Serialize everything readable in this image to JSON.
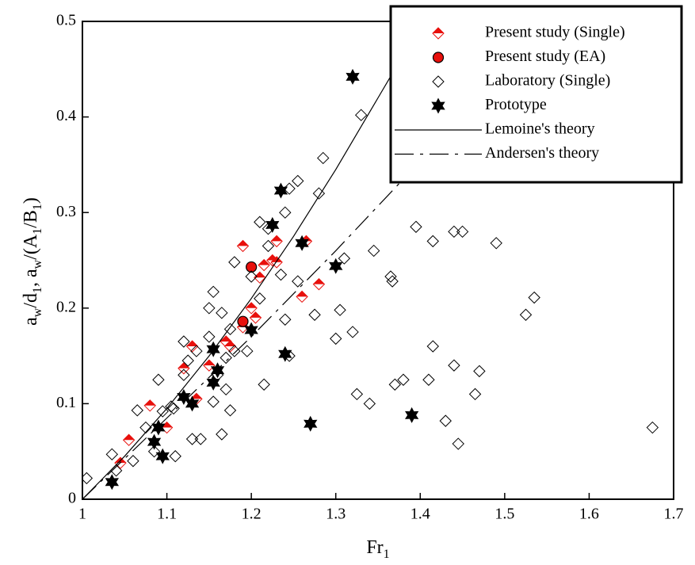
{
  "chart_data": {
    "type": "scatter",
    "xlabel_parts": [
      "Fr",
      "1"
    ],
    "ylabel_parts": [
      "a",
      "w",
      "/d",
      "1",
      ", a",
      "w",
      "/(A",
      "1",
      "/B",
      "1",
      ")"
    ],
    "xlim": [
      1,
      1.7
    ],
    "ylim": [
      0,
      0.5
    ],
    "xticks": [
      1,
      1.1,
      1.2,
      1.3,
      1.4,
      1.5,
      1.6,
      1.7
    ],
    "yticks": [
      0,
      0.1,
      0.2,
      0.3,
      0.4,
      0.5
    ],
    "legend": "top-right",
    "series": [
      {
        "name": "Present study (Single)",
        "marker": "half-diamond",
        "color": "#e8100c",
        "x": [
          1.055,
          1.045,
          1.08,
          1.1,
          1.12,
          1.13,
          1.135,
          1.15,
          1.17,
          1.175,
          1.19,
          1.19,
          1.2,
          1.205,
          1.21,
          1.215,
          1.225,
          1.23,
          1.23,
          1.26,
          1.265,
          1.28
        ],
        "values": [
          0.062,
          0.038,
          0.098,
          0.075,
          0.137,
          0.16,
          0.105,
          0.14,
          0.165,
          0.16,
          0.265,
          0.18,
          0.2,
          0.19,
          0.232,
          0.245,
          0.25,
          0.27,
          0.248,
          0.212,
          0.27,
          0.225
        ]
      },
      {
        "name": "Present study (EA)",
        "marker": "circle",
        "color": "#e8100c",
        "x": [
          1.19,
          1.2
        ],
        "values": [
          0.186,
          0.243
        ]
      },
      {
        "name": "Laboratory (Single)",
        "marker": "diamond",
        "color": "#000000",
        "x": [
          1.005,
          1.035,
          1.04,
          1.06,
          1.065,
          1.075,
          1.085,
          1.09,
          1.095,
          1.105,
          1.108,
          1.11,
          1.12,
          1.12,
          1.125,
          1.13,
          1.135,
          1.14,
          1.15,
          1.15,
          1.155,
          1.155,
          1.16,
          1.165,
          1.165,
          1.17,
          1.17,
          1.175,
          1.175,
          1.18,
          1.18,
          1.195,
          1.2,
          1.21,
          1.21,
          1.215,
          1.22,
          1.22,
          1.235,
          1.24,
          1.24,
          1.245,
          1.245,
          1.255,
          1.255,
          1.275,
          1.28,
          1.285,
          1.3,
          1.305,
          1.31,
          1.32,
          1.325,
          1.33,
          1.34,
          1.345,
          1.365,
          1.367,
          1.37,
          1.38,
          1.395,
          1.41,
          1.415,
          1.415,
          1.43,
          1.44,
          1.44,
          1.445,
          1.45,
          1.465,
          1.47,
          1.49,
          1.525,
          1.535,
          1.675
        ],
        "values": [
          0.022,
          0.047,
          0.03,
          0.04,
          0.093,
          0.075,
          0.05,
          0.125,
          0.092,
          0.097,
          0.095,
          0.045,
          0.13,
          0.165,
          0.145,
          0.063,
          0.155,
          0.063,
          0.2,
          0.17,
          0.217,
          0.102,
          0.13,
          0.195,
          0.068,
          0.115,
          0.148,
          0.178,
          0.093,
          0.155,
          0.248,
          0.155,
          0.233,
          0.29,
          0.21,
          0.12,
          0.265,
          0.283,
          0.235,
          0.3,
          0.188,
          0.15,
          0.325,
          0.333,
          0.228,
          0.193,
          0.32,
          0.357,
          0.168,
          0.198,
          0.252,
          0.175,
          0.11,
          0.402,
          0.1,
          0.26,
          0.233,
          0.228,
          0.12,
          0.125,
          0.285,
          0.125,
          0.27,
          0.16,
          0.082,
          0.14,
          0.28,
          0.058,
          0.28,
          0.11,
          0.134,
          0.268,
          0.193,
          0.211,
          0.075
        ]
      },
      {
        "name": "Prototype",
        "marker": "star",
        "color": "#000000",
        "x": [
          1.035,
          1.085,
          1.09,
          1.095,
          1.12,
          1.13,
          1.155,
          1.155,
          1.16,
          1.2,
          1.225,
          1.235,
          1.24,
          1.26,
          1.27,
          1.3,
          1.32,
          1.39
        ],
        "values": [
          0.018,
          0.06,
          0.075,
          0.045,
          0.107,
          0.1,
          0.157,
          0.122,
          0.135,
          0.177,
          0.287,
          0.323,
          0.152,
          0.268,
          0.079,
          0.244,
          0.442,
          0.088
        ]
      },
      {
        "name": "Lemoine's theory",
        "marker": "line",
        "color": "#000000",
        "x": [
          1,
          1.05,
          1.1,
          1.15,
          1.2,
          1.25,
          1.3,
          1.35,
          1.37
        ],
        "values": [
          0,
          0.045,
          0.095,
          0.15,
          0.21,
          0.275,
          0.345,
          0.42,
          0.45
        ]
      },
      {
        "name": "Andersen's theory",
        "marker": "dashdot",
        "color": "#000000",
        "x": [
          1,
          1.1,
          1.2,
          1.3,
          1.38
        ],
        "values": [
          0,
          0.085,
          0.17,
          0.26,
          0.335
        ]
      }
    ]
  }
}
